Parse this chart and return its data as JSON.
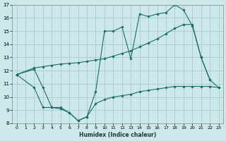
{
  "xlabel": "Humidex (Indice chaleur)",
  "bg_color": "#cde8ea",
  "grid_color": "#aacfcf",
  "line_color": "#1a6b6b",
  "xlim": [
    -0.5,
    23.5
  ],
  "ylim": [
    8,
    17
  ],
  "yticks": [
    8,
    9,
    10,
    11,
    12,
    13,
    14,
    15,
    16,
    17
  ],
  "xticks": [
    0,
    1,
    2,
    3,
    4,
    5,
    6,
    7,
    8,
    9,
    10,
    11,
    12,
    13,
    14,
    15,
    16,
    17,
    18,
    19,
    20,
    21,
    22,
    23
  ],
  "series": [
    {
      "x": [
        0,
        2,
        3,
        4,
        5,
        6,
        7,
        8,
        9,
        10,
        11,
        12,
        13,
        14,
        15,
        16,
        17,
        18,
        19,
        20,
        21,
        22
      ],
      "y": [
        11.7,
        12.1,
        10.7,
        9.2,
        9.2,
        8.8,
        8.2,
        8.5,
        10.4,
        15.0,
        15.0,
        15.3,
        12.9,
        16.3,
        16.1,
        16.3,
        16.4,
        17.0,
        16.6,
        15.4,
        13.0,
        11.3
      ]
    },
    {
      "x": [
        0,
        2,
        3,
        4,
        5,
        6,
        7,
        8,
        9,
        10,
        11,
        12,
        13,
        14,
        15,
        16,
        17,
        18,
        19,
        20,
        21,
        22,
        23
      ],
      "y": [
        11.7,
        12.2,
        12.3,
        12.4,
        12.5,
        12.55,
        12.6,
        12.7,
        12.8,
        12.9,
        13.1,
        13.3,
        13.5,
        13.8,
        14.1,
        14.4,
        14.8,
        15.2,
        15.5,
        15.5,
        13.0,
        11.3,
        10.7
      ]
    },
    {
      "x": [
        0,
        2,
        3,
        4,
        5,
        6,
        7,
        8,
        9,
        10,
        11,
        12,
        13,
        14,
        15,
        16,
        17,
        18,
        19,
        20,
        21,
        22,
        23
      ],
      "y": [
        11.7,
        10.7,
        9.2,
        9.2,
        9.1,
        8.8,
        8.2,
        8.5,
        9.5,
        9.8,
        10.0,
        10.1,
        10.2,
        10.4,
        10.5,
        10.6,
        10.7,
        10.8,
        10.8,
        10.8,
        10.8,
        10.8,
        10.7
      ]
    }
  ]
}
